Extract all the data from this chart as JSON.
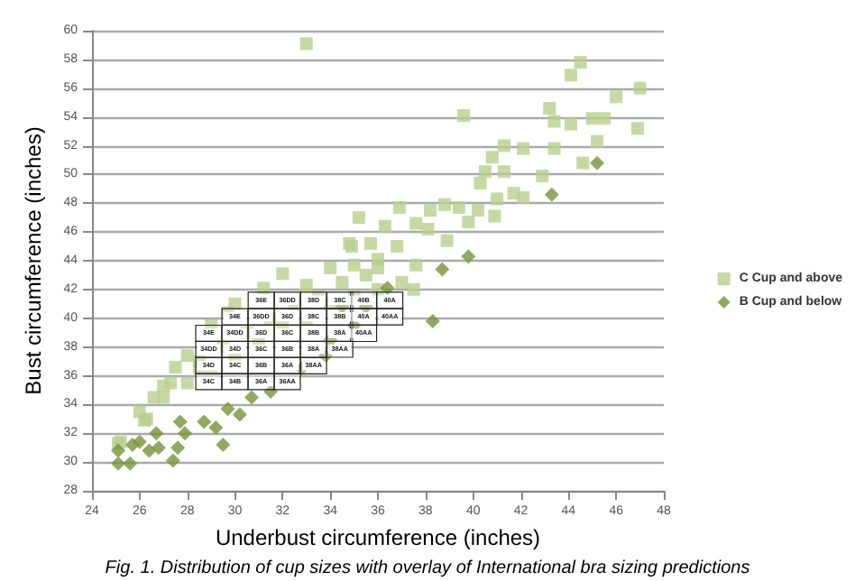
{
  "chart_data": {
    "type": "scatter",
    "xlabel": "Underbust circumference (inches)",
    "ylabel": "Bust circumference (inches)",
    "xlim": [
      24,
      48
    ],
    "xticks": [
      24,
      26,
      28,
      30,
      32,
      34,
      36,
      38,
      40,
      42,
      44,
      46,
      48
    ],
    "ylim": [
      28,
      60
    ],
    "yticks": [
      28,
      30,
      32,
      34,
      36,
      38,
      40,
      42,
      44,
      46,
      48,
      50,
      52,
      54,
      56,
      58,
      60
    ],
    "grid": "y",
    "legend": "right",
    "series": [
      {
        "name": "C Cup and above",
        "color": "#b8cf8f",
        "marker": "square",
        "x": [
          33.0,
          44.5,
          44.1,
          47.0,
          46.0,
          43.2,
          43.4,
          44.1,
          45.0,
          45.5,
          39.6,
          46.9,
          45.2,
          44.6,
          43.4,
          42.9,
          41.3,
          42.1,
          40.8,
          40.5,
          41.3,
          40.3,
          41.0,
          41.7,
          42.1,
          40.9,
          40.2,
          38.8,
          38.2,
          39.4,
          36.9,
          35.2,
          36.3,
          37.6,
          38.9,
          39.8,
          38.1,
          34.9,
          35.7,
          36.0,
          37.6,
          36.8,
          34.0,
          27.5,
          27.3,
          26.6,
          25.2,
          26.2,
          28.5,
          28.0,
          27.0,
          34.8,
          31.2,
          35.0,
          29.7,
          29.0,
          32.0,
          28.5,
          29.5,
          30.5,
          31.5,
          32.5,
          33.5,
          34.5,
          35.5,
          36.0,
          37.0,
          37.5,
          33.0,
          30.0,
          26.0,
          27.0,
          28.0,
          25.1,
          26.3,
          29.0,
          30.0,
          31.0,
          32.0,
          33.0,
          34.0,
          35.0,
          36.0
        ],
        "values": [
          59.1,
          57.8,
          56.9,
          56.0,
          55.4,
          54.6,
          53.7,
          53.5,
          53.9,
          53.9,
          54.1,
          53.2,
          52.3,
          50.8,
          51.8,
          49.9,
          52.0,
          51.8,
          51.2,
          50.2,
          50.2,
          49.4,
          48.3,
          48.7,
          48.4,
          47.1,
          47.5,
          47.9,
          47.5,
          47.7,
          47.7,
          47.0,
          46.4,
          46.6,
          45.4,
          46.7,
          46.2,
          45.0,
          45.2,
          44.1,
          43.7,
          45.0,
          43.5,
          36.6,
          35.5,
          34.5,
          31.4,
          32.9,
          36.6,
          37.4,
          35.3,
          45.2,
          42.1,
          43.7,
          40.4,
          39.5,
          43.1,
          37.0,
          38.0,
          39.0,
          40.0,
          41.0,
          41.5,
          42.5,
          43.0,
          43.5,
          42.5,
          42.0,
          42.3,
          41.0,
          33.5,
          34.5,
          35.5,
          31.3,
          33.0,
          36.5,
          37.5,
          38.5,
          39.5,
          40.0,
          41.0,
          41.5,
          42.0
        ]
      },
      {
        "name": "B Cup and below",
        "color": "#77933c",
        "marker": "diamond",
        "x": [
          25.1,
          25.6,
          25.1,
          25.7,
          26.0,
          26.4,
          26.8,
          27.4,
          27.6,
          29.5,
          27.9,
          28.7,
          29.7,
          30.7,
          31.5,
          27.7,
          26.7,
          29.2,
          30.2,
          38.3,
          38.7,
          39.8,
          43.3,
          45.2,
          36.4,
          33.8,
          35.5,
          34.5,
          34.0,
          35.0,
          32.8
        ],
        "values": [
          29.9,
          29.9,
          30.8,
          31.2,
          31.4,
          30.8,
          31.0,
          30.1,
          31.0,
          31.2,
          32.0,
          32.8,
          33.7,
          34.5,
          34.9,
          32.8,
          32.0,
          32.4,
          33.3,
          39.8,
          43.4,
          44.3,
          48.6,
          50.8,
          42.1,
          37.4,
          40.8,
          40.8,
          38.5,
          39.5,
          36.5
        ]
      }
    ],
    "annotations": [
      {
        "text": "34C",
        "x": 28.9,
        "y": 35.6
      },
      {
        "text": "34D",
        "x": 28.9,
        "y": 36.7
      },
      {
        "text": "34DD",
        "x": 28.9,
        "y": 37.85
      },
      {
        "text": "34E",
        "x": 28.9,
        "y": 38.95
      },
      {
        "text": "34B",
        "x": 30.0,
        "y": 35.6
      },
      {
        "text": "34C",
        "x": 30.0,
        "y": 36.7
      },
      {
        "text": "34D",
        "x": 30.0,
        "y": 37.85
      },
      {
        "text": "34DD",
        "x": 30.0,
        "y": 38.95
      },
      {
        "text": "34E",
        "x": 30.0,
        "y": 40.1
      },
      {
        "text": "36A",
        "x": 31.1,
        "y": 35.6
      },
      {
        "text": "36B",
        "x": 31.1,
        "y": 36.7
      },
      {
        "text": "36C",
        "x": 31.1,
        "y": 37.85
      },
      {
        "text": "36D",
        "x": 31.1,
        "y": 38.95
      },
      {
        "text": "36DD",
        "x": 31.1,
        "y": 40.1
      },
      {
        "text": "36E",
        "x": 31.1,
        "y": 41.25
      },
      {
        "text": "36AA",
        "x": 32.2,
        "y": 35.6
      },
      {
        "text": "36A",
        "x": 32.2,
        "y": 36.7
      },
      {
        "text": "36B",
        "x": 32.2,
        "y": 37.85
      },
      {
        "text": "36C",
        "x": 32.2,
        "y": 38.95
      },
      {
        "text": "36D",
        "x": 32.2,
        "y": 40.1
      },
      {
        "text": "36DD",
        "x": 32.2,
        "y": 41.25
      },
      {
        "text": "38AA",
        "x": 33.3,
        "y": 36.7
      },
      {
        "text": "38A",
        "x": 33.3,
        "y": 37.85
      },
      {
        "text": "38B",
        "x": 33.3,
        "y": 38.95
      },
      {
        "text": "38C",
        "x": 33.3,
        "y": 40.1
      },
      {
        "text": "38D",
        "x": 33.3,
        "y": 41.25
      },
      {
        "text": "38AA",
        "x": 34.4,
        "y": 37.85
      },
      {
        "text": "38A",
        "x": 34.4,
        "y": 38.95
      },
      {
        "text": "38B",
        "x": 34.4,
        "y": 40.1
      },
      {
        "text": "38C",
        "x": 34.4,
        "y": 41.25
      },
      {
        "text": "40AA",
        "x": 35.4,
        "y": 38.95
      },
      {
        "text": "40A",
        "x": 35.4,
        "y": 40.1
      },
      {
        "text": "40B",
        "x": 35.4,
        "y": 41.25
      },
      {
        "text": "40AA",
        "x": 36.5,
        "y": 40.1
      },
      {
        "text": "40A",
        "x": 36.5,
        "y": 41.25
      },
      "Fig. 1. Distribution of cup sizes with overlay of International bra sizing predictions"
    ]
  }
}
